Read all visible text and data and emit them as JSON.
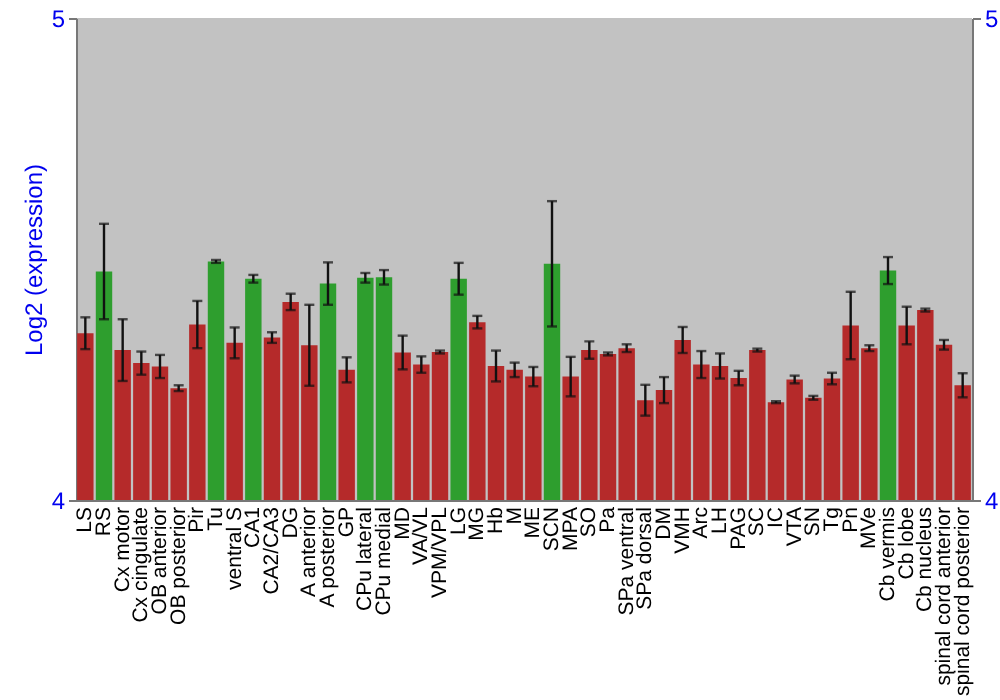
{
  "chart_data": {
    "type": "bar",
    "ylabel": "Log2 (expression)",
    "categories": [
      "LS",
      "RS",
      "Cx motor",
      "Cx cingulate",
      "OB anterior",
      "OB posterior",
      "Pir",
      "Tu",
      "ventral S",
      "CA1",
      "CA2/CA3",
      "DG",
      "A anterior",
      "A posterior",
      "GP",
      "CPu lateral",
      "CPu medial",
      "MD",
      "VA/VL",
      "VPM/VPL",
      "LG",
      "MG",
      "Hb",
      "M",
      "ME",
      "SCN",
      "MPA",
      "SO",
      "Pa",
      "SPa ventral",
      "SPa dorsal",
      "DM",
      "VMH",
      "Arc",
      "LH",
      "PAG",
      "SC",
      "IC",
      "VTA",
      "SN",
      "Tg",
      "Pn",
      "MVe",
      "Cb vermis",
      "Cb lobe",
      "Cb nucleus",
      "spinal cord anterior",
      "spinal cord posterior"
    ],
    "values": [
      4.346,
      4.474,
      4.311,
      4.284,
      4.277,
      4.232,
      4.364,
      4.495,
      4.326,
      4.459,
      4.337,
      4.411,
      4.321,
      4.449,
      4.27,
      4.461,
      4.462,
      4.306,
      4.281,
      4.307,
      4.459,
      4.369,
      4.278,
      4.27,
      4.256,
      4.49,
      4.256,
      4.311,
      4.303,
      4.315,
      4.207,
      4.228,
      4.332,
      4.281,
      4.278,
      4.253,
      4.311,
      4.203,
      4.25,
      4.212,
      4.252,
      4.362,
      4.315,
      4.476,
      4.362,
      4.394,
      4.322,
      4.238
    ],
    "errors": [
      0.033,
      0.099,
      0.064,
      0.024,
      0.024,
      0.006,
      0.049,
      0.003,
      0.032,
      0.008,
      0.011,
      0.017,
      0.084,
      0.044,
      0.026,
      0.01,
      0.015,
      0.035,
      0.017,
      0.003,
      0.033,
      0.013,
      0.032,
      0.015,
      0.02,
      0.13,
      0.041,
      0.018,
      0.003,
      0.008,
      0.032,
      0.027,
      0.027,
      0.028,
      0.026,
      0.015,
      0.003,
      0.002,
      0.008,
      0.004,
      0.012,
      0.07,
      0.006,
      0.028,
      0.039,
      0.003,
      0.01,
      0.025
    ],
    "colors": [
      "#b52a2a",
      "#2e9e2e",
      "#b52a2a",
      "#b52a2a",
      "#b52a2a",
      "#b52a2a",
      "#b52a2a",
      "#2e9e2e",
      "#b52a2a",
      "#2e9e2e",
      "#b52a2a",
      "#b52a2a",
      "#b52a2a",
      "#2e9e2e",
      "#b52a2a",
      "#2e9e2e",
      "#2e9e2e",
      "#b52a2a",
      "#b52a2a",
      "#b52a2a",
      "#2e9e2e",
      "#b52a2a",
      "#b52a2a",
      "#b52a2a",
      "#b52a2a",
      "#2e9e2e",
      "#b52a2a",
      "#b52a2a",
      "#b52a2a",
      "#b52a2a",
      "#b52a2a",
      "#b52a2a",
      "#b52a2a",
      "#b52a2a",
      "#b52a2a",
      "#b52a2a",
      "#b52a2a",
      "#b52a2a",
      "#b52a2a",
      "#b52a2a",
      "#b52a2a",
      "#b52a2a",
      "#b52a2a",
      "#2e9e2e",
      "#b52a2a",
      "#b52a2a",
      "#b52a2a",
      "#b52a2a"
    ],
    "ylim": [
      4,
      5
    ],
    "yticks": [
      4,
      5
    ],
    "y2lim": [
      4,
      5
    ],
    "y2ticks": [
      4,
      5
    ],
    "grid": false
  }
}
